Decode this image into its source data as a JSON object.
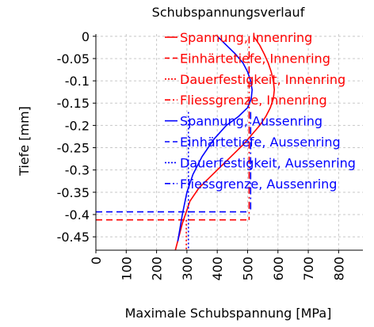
{
  "chart_data": {
    "type": "line",
    "title": "Schubspannungsverlauf",
    "xlabel": "Maximale Schubspannung [MPa]",
    "ylabel": "Tiefe [mm]",
    "xlim": [
      0,
      880
    ],
    "ylim": [
      -0.48,
      0.005
    ],
    "xticks": [
      0,
      100,
      200,
      300,
      400,
      500,
      600,
      700,
      800
    ],
    "xtick_labels": [
      "0",
      "100",
      "200",
      "300",
      "400",
      "500",
      "600",
      "700",
      "800"
    ],
    "yticks": [
      0,
      -0.05,
      -0.1,
      -0.15,
      -0.2,
      -0.25,
      -0.3,
      -0.35,
      -0.4,
      -0.45
    ],
    "ytick_labels": [
      "0",
      "-0.05",
      "-0.1",
      "-0.15",
      "-0.2",
      "-0.25",
      "-0.3",
      "-0.35",
      "-0.4",
      "-0.45"
    ],
    "grid": true,
    "legend_position": "inside-top",
    "colors": {
      "innenring": "#ff0000",
      "aussenring": "#0000ff",
      "grid": "#c8c8c8"
    },
    "series": [
      {
        "name": "Spannung, Innenring",
        "color": "#ff0000",
        "style": "solid",
        "x": [
          520,
          540,
          555,
          568,
          578,
          585,
          588,
          585,
          575,
          560,
          540,
          515,
          490,
          460,
          430,
          400,
          370,
          340,
          310,
          285,
          262
        ],
        "y": [
          0,
          -0.02,
          -0.04,
          -0.06,
          -0.08,
          -0.1,
          -0.12,
          -0.14,
          -0.16,
          -0.18,
          -0.2,
          -0.22,
          -0.24,
          -0.26,
          -0.28,
          -0.3,
          -0.32,
          -0.34,
          -0.37,
          -0.42,
          -0.48
        ]
      },
      {
        "name": "Einhärtetiefe, Innenring",
        "color": "#ff0000",
        "style": "dashed",
        "x": [
          0,
          505
        ],
        "y": [
          -0.412,
          -0.412
        ]
      },
      {
        "name": "Dauerfestigkeit, Innenring",
        "color": "#ff0000",
        "style": "dotted",
        "x": [
          298,
          298
        ],
        "y": [
          -0.412,
          -0.48
        ]
      },
      {
        "name": "Fliessgrenze, Innenring",
        "color": "#ff0000",
        "style": "dashdot",
        "x": [
          505,
          505
        ],
        "y": [
          0,
          -0.412
        ]
      },
      {
        "name": "Spannung, Aussenring",
        "color": "#0000ff",
        "style": "solid",
        "x": [
          400,
          430,
          460,
          485,
          500,
          510,
          515,
          512,
          500,
          470,
          430,
          390,
          350,
          320,
          300,
          285,
          270
        ],
        "y": [
          0,
          -0.02,
          -0.04,
          -0.06,
          -0.08,
          -0.1,
          -0.12,
          -0.14,
          -0.16,
          -0.18,
          -0.2,
          -0.23,
          -0.27,
          -0.31,
          -0.35,
          -0.4,
          -0.46
        ]
      },
      {
        "name": "Einhärtetiefe, Aussenring",
        "color": "#0000ff",
        "style": "dashed",
        "x": [
          0,
          505
        ],
        "y": [
          -0.394,
          -0.394
        ]
      },
      {
        "name": "Dauerfestigkeit, Aussenring",
        "color": "#0000ff",
        "style": "dotted",
        "x": [
          305,
          305
        ],
        "y": [
          -0.17,
          -0.48
        ]
      },
      {
        "name": "Fliessgrenze, Aussenring",
        "color": "#0000ff",
        "style": "dashdot",
        "x": [
          510,
          510
        ],
        "y": [
          -0.17,
          -0.394
        ]
      }
    ]
  }
}
